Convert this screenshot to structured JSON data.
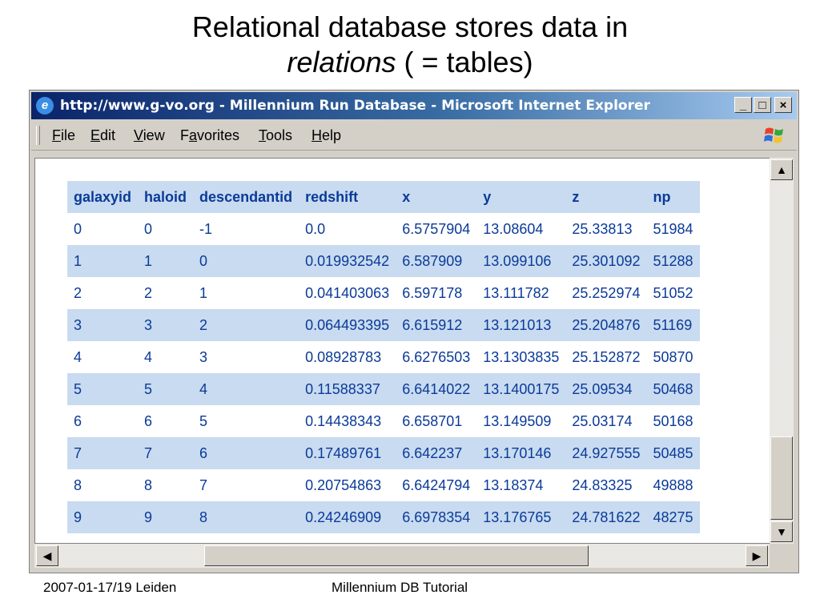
{
  "slide": {
    "title_line1": "Relational database stores data in",
    "title_line2_italic": "relations",
    "title_line2_rest": " ( = tables)"
  },
  "window": {
    "title": "http://www.g-vo.org - Millennium Run Database - Microsoft Internet Explorer",
    "controls": [
      "_",
      "□",
      "×"
    ],
    "title_bar_color": "#0a246a"
  },
  "menu": {
    "items": [
      {
        "label": "File",
        "key": "F",
        "rest": "ile"
      },
      {
        "label": "Edit",
        "key": "E",
        "rest": "dit"
      },
      {
        "label": "View",
        "key": "V",
        "rest": "iew"
      },
      {
        "label": "Favorites",
        "pre": "F",
        "key": "a",
        "rest": "vorites"
      },
      {
        "label": "Tools",
        "key": "T",
        "rest": "ools"
      },
      {
        "label": "Help",
        "key": "H",
        "rest": "elp"
      }
    ]
  },
  "table": {
    "columns": [
      "galaxyid",
      "haloid",
      "descendantid",
      "redshift",
      "x",
      "y",
      "z",
      "np"
    ],
    "rows": [
      [
        "0",
        "0",
        "-1",
        "0.0",
        "6.5757904",
        "13.08604",
        "25.33813",
        "51984"
      ],
      [
        "1",
        "1",
        "0",
        "0.019932542",
        "6.587909",
        "13.099106",
        "25.301092",
        "51288"
      ],
      [
        "2",
        "2",
        "1",
        "0.041403063",
        "6.597178",
        "13.111782",
        "25.252974",
        "51052"
      ],
      [
        "3",
        "3",
        "2",
        "0.064493395",
        "6.615912",
        "13.121013",
        "25.204876",
        "51169"
      ],
      [
        "4",
        "4",
        "3",
        "0.08928783",
        "6.6276503",
        "13.1303835",
        "25.152872",
        "50870"
      ],
      [
        "5",
        "5",
        "4",
        "0.11588337",
        "6.6414022",
        "13.1400175",
        "25.09534",
        "50468"
      ],
      [
        "6",
        "6",
        "5",
        "0.14438343",
        "6.658701",
        "13.149509",
        "25.03174",
        "50168"
      ],
      [
        "7",
        "7",
        "6",
        "0.17489761",
        "6.642237",
        "13.170146",
        "24.927555",
        "50485"
      ],
      [
        "8",
        "8",
        "7",
        "0.20754863",
        "6.6424794",
        "13.18374",
        "24.83325",
        "49888"
      ],
      [
        "9",
        "9",
        "8",
        "0.24246909",
        "6.6978354",
        "13.176765",
        "24.781622",
        "48275"
      ]
    ],
    "text_color": "#0b3a99",
    "stripe_color": "#c8dbf0"
  },
  "footer": {
    "left": "2007-01-17/19 Leiden",
    "center": "Millennium DB Tutorial"
  }
}
